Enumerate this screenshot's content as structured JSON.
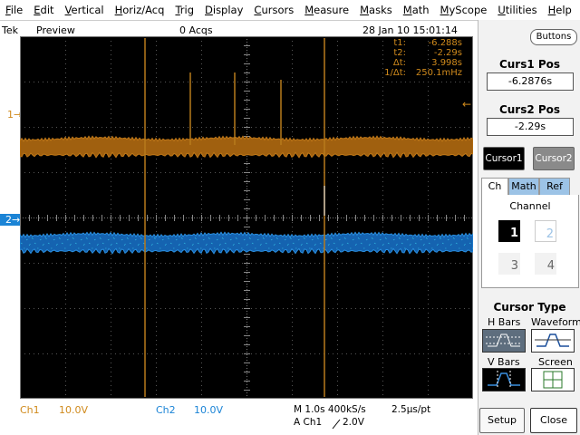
{
  "menu": [
    "File",
    "Edit",
    "Vertical",
    "Horiz/Acq",
    "Trig",
    "Display",
    "Cursors",
    "Measure",
    "Masks",
    "Math",
    "MyScope",
    "Utilities",
    "Help"
  ],
  "status": {
    "brand": "Tek",
    "mode": "Preview",
    "acquisitions": "0 Acqs",
    "timestamp": "28 Jan 10 15:01:14",
    "toggle": "Buttons"
  },
  "readout": [
    {
      "label": "t1:",
      "value": "-6.288s"
    },
    {
      "label": "t2:",
      "value": "-2.29s"
    },
    {
      "label": "Δt:",
      "value": "3.998s"
    },
    {
      "label": "1/Δt:",
      "value": "250.1mHz"
    }
  ],
  "channel_markers": [
    "1",
    "2"
  ],
  "footer": {
    "ch1": {
      "label": "Ch1",
      "scale": "10.0V"
    },
    "ch2": {
      "label": "Ch2",
      "scale": "10.0V"
    },
    "timebase": "M 1.0s 400kS/s",
    "resolution": "2.5μs/pt",
    "trigger_source": "A Ch1",
    "trigger_level": "2.0V"
  },
  "panel": {
    "curs1_title": "Curs1 Pos",
    "curs1_value": "-6.2876s",
    "curs2_title": "Curs2 Pos",
    "curs2_value": "-2.29s",
    "cursor_buttons": [
      "Cursor1",
      "Cursor2"
    ],
    "tabs": [
      "Ch",
      "Math",
      "Ref"
    ],
    "channel_title": "Channel",
    "channels": [
      "1",
      "2",
      "3",
      "4"
    ],
    "cursor_type_title": "Cursor Type",
    "cursor_types": [
      "H Bars",
      "Waveform",
      "V Bars",
      "Screen"
    ],
    "actions": [
      "Setup",
      "Close"
    ]
  }
}
